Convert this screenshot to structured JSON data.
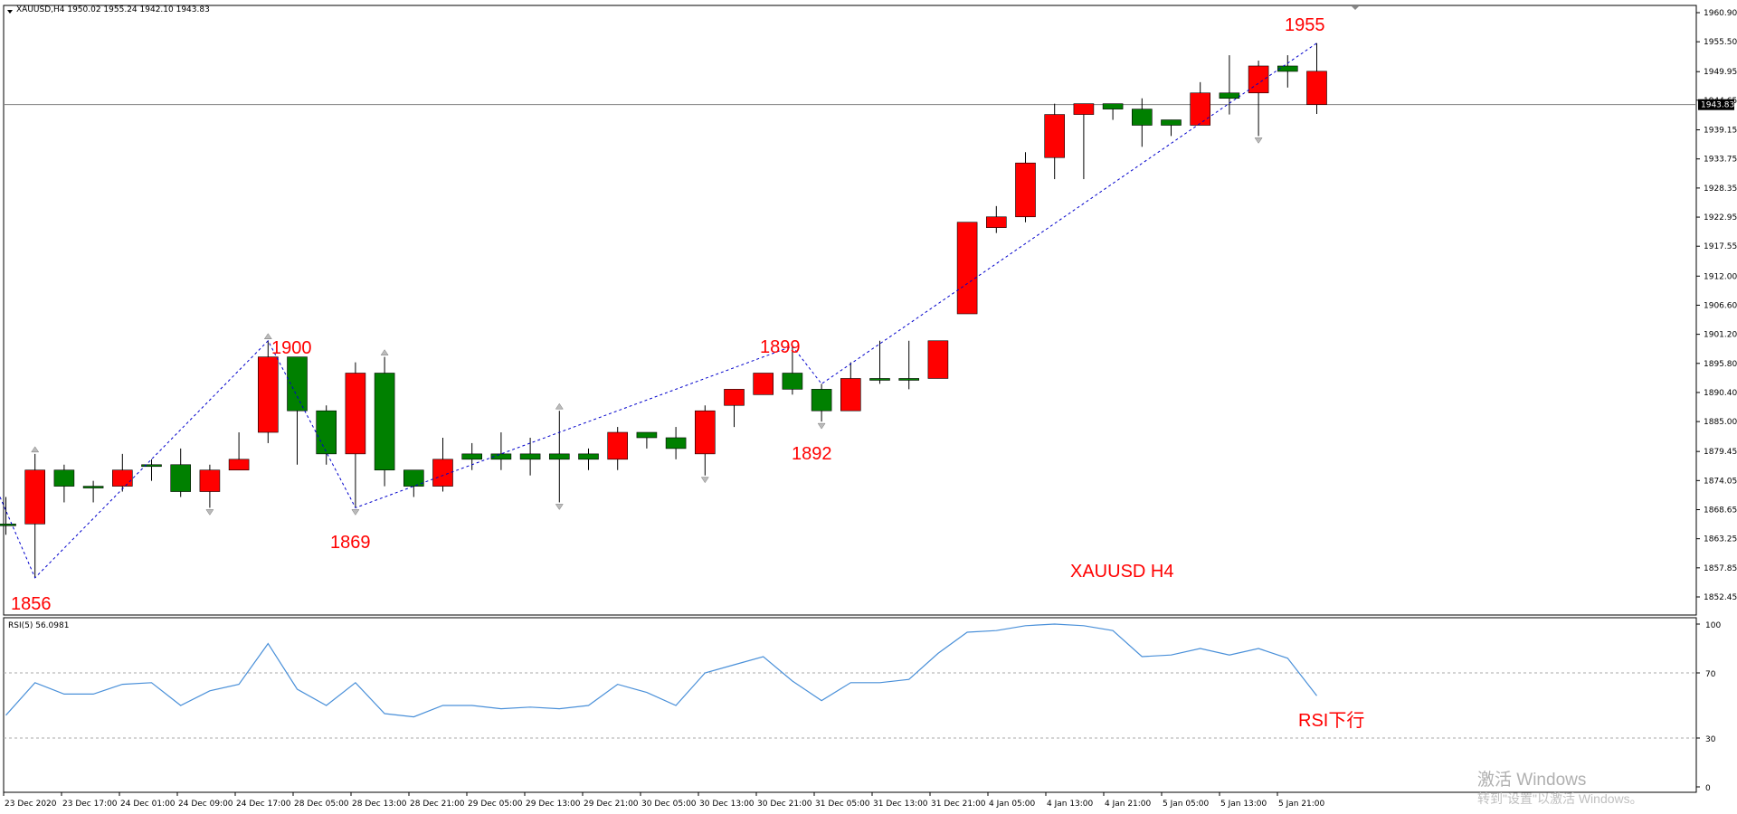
{
  "header": {
    "symbol_info": "XAUUSD,H4  1950.02 1955.24 1942.10 1943.83",
    "current_price_label": "1943.83"
  },
  "main_panel": {
    "watermark": "XAUUSD  H4",
    "price_axis_labels": [
      "1960.90",
      "1955.50",
      "1949.95",
      "1944.65",
      "1939.15",
      "1933.75",
      "1928.35",
      "1922.95",
      "1917.55",
      "1912.00",
      "1906.60",
      "1901.20",
      "1895.80",
      "1890.40",
      "1885.00",
      "1879.45",
      "1874.05",
      "1868.65",
      "1863.25",
      "1857.85",
      "1852.45"
    ],
    "annotations": [
      "1856",
      "1900",
      "1869",
      "1899",
      "1892",
      "1955"
    ]
  },
  "rsi_panel": {
    "label": "RSI(5) 56.0981",
    "levels": [
      "100",
      "70",
      "30",
      "0"
    ],
    "note": "RSI下行"
  },
  "time_axis_labels": [
    "23 Dec 2020",
    "23 Dec 17:00",
    "24 Dec 01:00",
    "24 Dec 09:00",
    "24 Dec 17:00",
    "28 Dec 05:00",
    "28 Dec 13:00",
    "28 Dec 21:00",
    "29 Dec 05:00",
    "29 Dec 13:00",
    "29 Dec 21:00",
    "30 Dec 05:00",
    "30 Dec 13:00",
    "30 Dec 21:00",
    "31 Dec 05:00",
    "31 Dec 13:00",
    "31 Dec 21:00",
    "4 Jan 05:00",
    "4 Jan 13:00",
    "4 Jan 21:00",
    "5 Jan 05:00",
    "5 Jan 13:00",
    "5 Jan 21:00"
  ],
  "windows_watermark": {
    "line1": "激活 Windows",
    "line2": "转到\"设置\"以激活 Windows。"
  },
  "colors": {
    "bull": "#008000",
    "bear": "#ff0000",
    "annotation": "#ff0000",
    "zigzag": "#0000cc",
    "rsi_line": "#4a90d9"
  },
  "chart_data": {
    "type": "candlestick",
    "ylim": [
      1852.45,
      1960.9
    ],
    "candles": [
      {
        "o": 1866,
        "h": 1871,
        "l": 1864,
        "c": 1866
      },
      {
        "o": 1876,
        "h": 1879,
        "l": 1856,
        "c": 1866
      },
      {
        "o": 1873,
        "h": 1877,
        "l": 1870,
        "c": 1876
      },
      {
        "o": 1873,
        "h": 1874,
        "l": 1870,
        "c": 1873
      },
      {
        "o": 1876,
        "h": 1879,
        "l": 1872,
        "c": 1873
      },
      {
        "o": 1877,
        "h": 1878,
        "l": 1874,
        "c": 1877
      },
      {
        "o": 1872,
        "h": 1880,
        "l": 1871,
        "c": 1877
      },
      {
        "o": 1876,
        "h": 1877,
        "l": 1869,
        "c": 1872
      },
      {
        "o": 1878,
        "h": 1883,
        "l": 1876,
        "c": 1876
      },
      {
        "o": 1897,
        "h": 1900,
        "l": 1881,
        "c": 1883
      },
      {
        "o": 1887,
        "h": 1897,
        "l": 1877,
        "c": 1897
      },
      {
        "o": 1879,
        "h": 1888,
        "l": 1877,
        "c": 1887
      },
      {
        "o": 1894,
        "h": 1896,
        "l": 1869,
        "c": 1879
      },
      {
        "o": 1876,
        "h": 1897,
        "l": 1873,
        "c": 1894
      },
      {
        "o": 1873,
        "h": 1876,
        "l": 1871,
        "c": 1876
      },
      {
        "o": 1878,
        "h": 1882,
        "l": 1872,
        "c": 1873
      },
      {
        "o": 1878,
        "h": 1881,
        "l": 1876,
        "c": 1879
      },
      {
        "o": 1878,
        "h": 1883,
        "l": 1876,
        "c": 1879
      },
      {
        "o": 1878,
        "h": 1882,
        "l": 1875,
        "c": 1879
      },
      {
        "o": 1878,
        "h": 1887,
        "l": 1870,
        "c": 1879
      },
      {
        "o": 1878,
        "h": 1880,
        "l": 1876,
        "c": 1879
      },
      {
        "o": 1883,
        "h": 1884,
        "l": 1876,
        "c": 1878
      },
      {
        "o": 1882,
        "h": 1883,
        "l": 1880,
        "c": 1883
      },
      {
        "o": 1880,
        "h": 1884,
        "l": 1878,
        "c": 1882
      },
      {
        "o": 1887,
        "h": 1888,
        "l": 1875,
        "c": 1879
      },
      {
        "o": 1891,
        "h": 1891,
        "l": 1884,
        "c": 1888
      },
      {
        "o": 1894,
        "h": 1894,
        "l": 1890,
        "c": 1890
      },
      {
        "o": 1891,
        "h": 1899,
        "l": 1890,
        "c": 1894
      },
      {
        "o": 1887,
        "h": 1892,
        "l": 1885,
        "c": 1891
      },
      {
        "o": 1893,
        "h": 1896,
        "l": 1887,
        "c": 1887
      },
      {
        "o": 1893,
        "h": 1900,
        "l": 1892,
        "c": 1893
      },
      {
        "o": 1893,
        "h": 1900,
        "l": 1891,
        "c": 1893
      },
      {
        "o": 1900,
        "h": 1900,
        "l": 1893,
        "c": 1893
      },
      {
        "o": 1922,
        "h": 1922,
        "l": 1905,
        "c": 1905
      },
      {
        "o": 1923,
        "h": 1925,
        "l": 1920,
        "c": 1921
      },
      {
        "o": 1933,
        "h": 1935,
        "l": 1922,
        "c": 1923
      },
      {
        "o": 1942,
        "h": 1944,
        "l": 1930,
        "c": 1934
      },
      {
        "o": 1944,
        "h": 1944,
        "l": 1930,
        "c": 1942
      },
      {
        "o": 1943,
        "h": 1944,
        "l": 1941,
        "c": 1944
      },
      {
        "o": 1940,
        "h": 1945,
        "l": 1936,
        "c": 1943
      },
      {
        "o": 1940,
        "h": 1941,
        "l": 1938,
        "c": 1941
      },
      {
        "o": 1946,
        "h": 1948,
        "l": 1940,
        "c": 1940
      },
      {
        "o": 1945,
        "h": 1953,
        "l": 1942,
        "c": 1946
      },
      {
        "o": 1951,
        "h": 1952,
        "l": 1938,
        "c": 1946
      },
      {
        "o": 1950,
        "h": 1953,
        "l": 1947,
        "c": 1951
      },
      {
        "o": 1950.02,
        "h": 1955.24,
        "l": 1942.1,
        "c": 1943.83
      }
    ],
    "rsi": [
      44,
      64,
      57,
      57,
      63,
      64,
      50,
      59,
      63,
      88,
      60,
      50,
      64,
      45,
      43,
      50,
      50,
      48,
      49,
      48,
      50,
      63,
      58,
      50,
      70,
      75,
      80,
      65,
      53,
      64,
      64,
      66,
      82,
      95,
      96,
      99,
      100,
      101,
      96,
      80,
      81,
      85,
      81,
      85,
      79,
      56
    ]
  }
}
